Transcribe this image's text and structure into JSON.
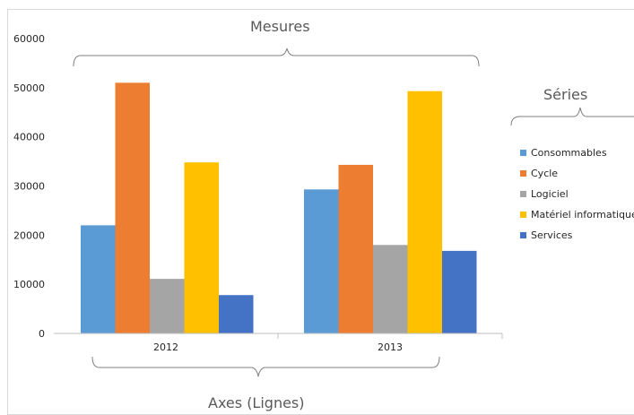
{
  "chart_data": {
    "type": "bar",
    "categories": [
      "2012",
      "2013"
    ],
    "series": [
      {
        "name": "Consommables",
        "values": [
          22000,
          29300
        ],
        "color": "#5B9BD5"
      },
      {
        "name": "Cycle",
        "values": [
          51000,
          34300
        ],
        "color": "#ED7D31"
      },
      {
        "name": "Logiciel",
        "values": [
          11100,
          18000
        ],
        "color": "#A5A5A5"
      },
      {
        "name": "Matériel informatique",
        "values": [
          34800,
          49300
        ],
        "color": "#FFC000"
      },
      {
        "name": "Services",
        "values": [
          7800,
          16800
        ],
        "color": "#4472C4"
      }
    ],
    "y_ticks": [
      "0",
      "10000",
      "20000",
      "30000",
      "40000",
      "50000",
      "60000"
    ],
    "ylim": [
      0,
      60000
    ],
    "grid": false,
    "legend_position": "right"
  },
  "annotations": {
    "measures_label": "Mesures",
    "series_label": "Séries",
    "axes_label": "Axes (Lignes)"
  }
}
